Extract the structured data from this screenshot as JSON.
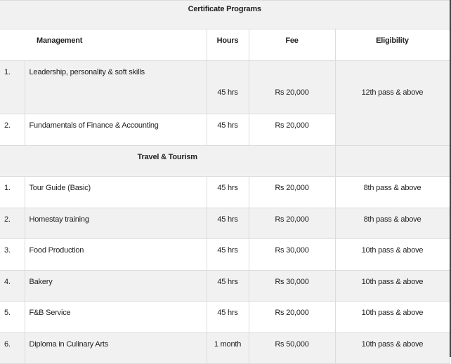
{
  "title": "Certificate Programs",
  "headers": {
    "category": "Management",
    "hours": "Hours",
    "fee": "Fee",
    "eligibility": "Eligibility"
  },
  "management": {
    "eligibility": "12th pass & above",
    "rows": [
      {
        "num": "1.",
        "name": "Leadership, personality & soft skills",
        "hours": "45 hrs",
        "fee": "Rs 20,000"
      },
      {
        "num": "2.",
        "name": "Fundamentals of Finance & Accounting",
        "hours": "45 hrs",
        "fee": "Rs 20,000"
      }
    ]
  },
  "travel": {
    "heading": "Travel & Tourism",
    "rows": [
      {
        "num": "1.",
        "name": "Tour Guide (Basic)",
        "hours": "45 hrs",
        "fee": "Rs 20,000",
        "eligibility": "8th pass & above"
      },
      {
        "num": "2.",
        "name": "Homestay training",
        "hours": "45 hrs",
        "fee": "Rs 20,000",
        "eligibility": "8th pass & above"
      },
      {
        "num": "3.",
        "name": "Food Production",
        "hours": "45 hrs",
        "fee": "Rs 30,000",
        "eligibility": "10th pass & above"
      },
      {
        "num": "4.",
        "name": "Bakery",
        "hours": "45 hrs",
        "fee": "Rs 30,000",
        "eligibility": "10th pass & above"
      },
      {
        "num": "5.",
        "name": "F&B Service",
        "hours": "45 hrs",
        "fee": "Rs 20,000",
        "eligibility": "10th pass & above"
      },
      {
        "num": "6.",
        "name": "Diploma in Culinary Arts",
        "hours": "1 month",
        "fee": "Rs 50,000",
        "eligibility": "10th pass & above"
      }
    ]
  }
}
